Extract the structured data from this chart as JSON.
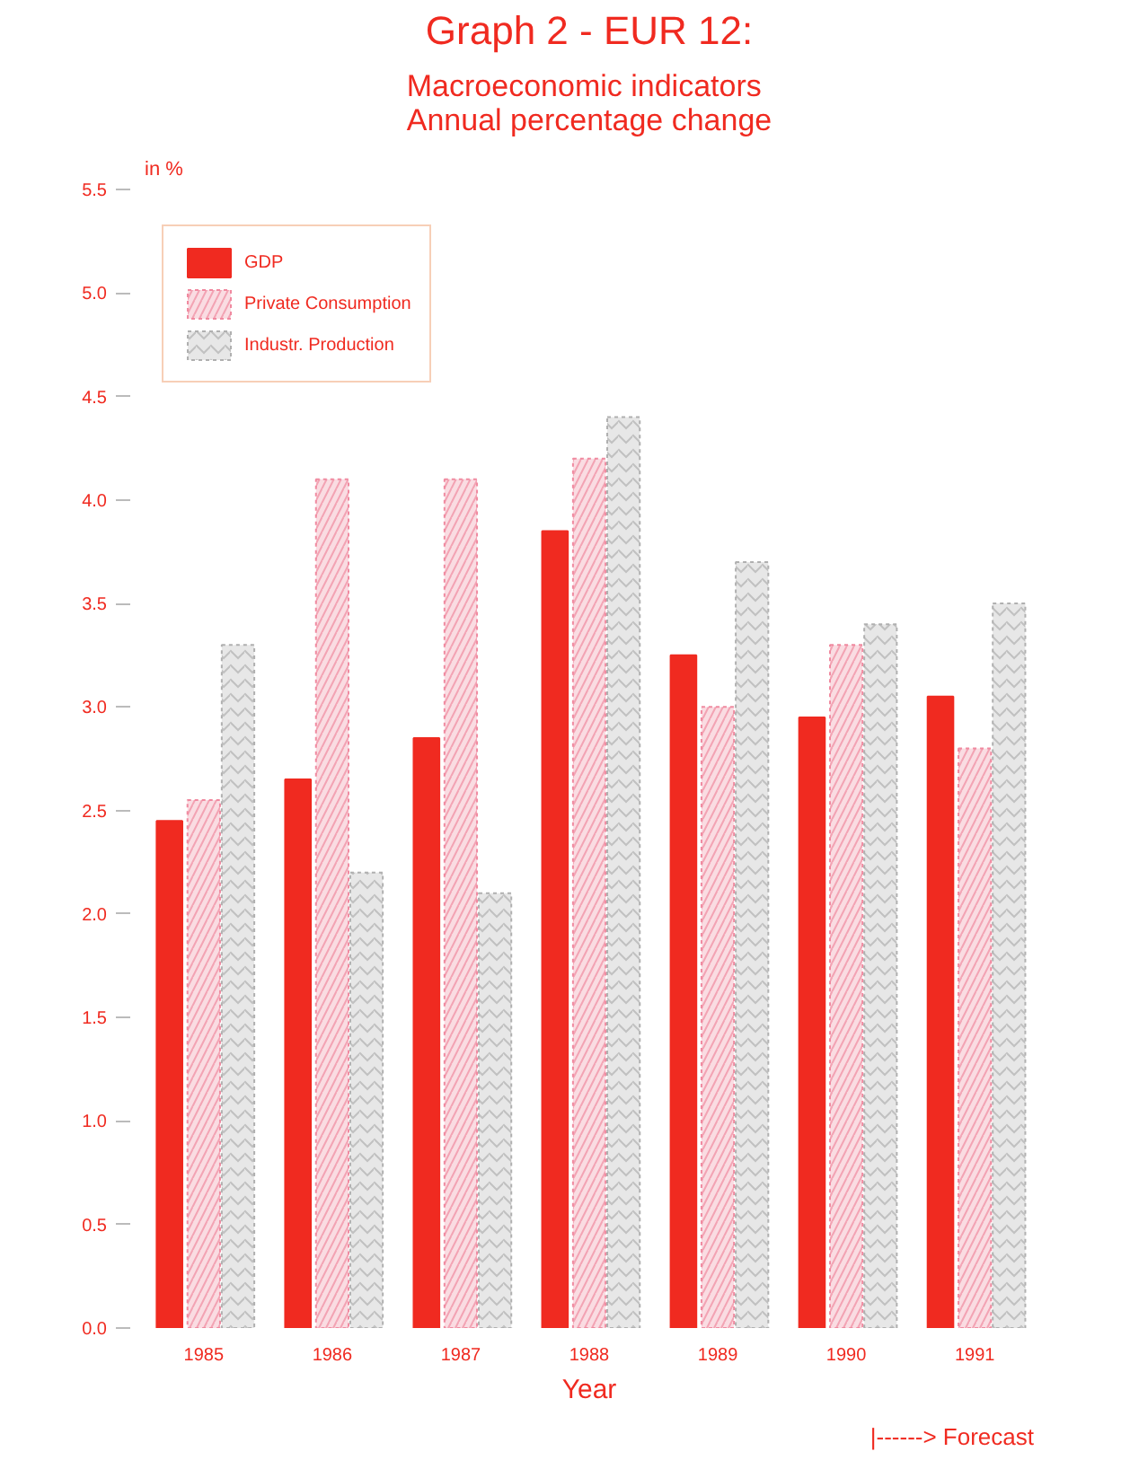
{
  "chart_data": {
    "type": "bar",
    "title": "Graph 2 - EUR 12:",
    "subtitle": "Macroeconomic indicators\nAnnual percentage change",
    "xlabel": "Year",
    "ylabel": "in %",
    "categories": [
      "1985",
      "1986",
      "1987",
      "1988",
      "1989",
      "1990",
      "1991"
    ],
    "series": [
      {
        "name": "GDP",
        "color": "#f02a20",
        "values": [
          2.45,
          2.65,
          2.85,
          3.85,
          3.25,
          2.95,
          3.05
        ]
      },
      {
        "name": "Private Consumption",
        "color": "#f08aa0",
        "values": [
          2.55,
          4.1,
          4.1,
          4.2,
          3.0,
          3.3,
          2.8
        ]
      },
      {
        "name": "Industr. Production",
        "color": "#b0b0b0",
        "values": [
          3.3,
          2.2,
          2.1,
          4.4,
          3.7,
          3.4,
          3.5
        ]
      }
    ],
    "ylim": [
      0,
      5.5
    ],
    "yticks": [
      {
        "value": 0,
        "label": "0.0"
      },
      0.5,
      {
        "value": 1,
        "label": "1.0"
      },
      1.5,
      {
        "value": 2,
        "label": "2.0"
      },
      2.5,
      {
        "value": 3,
        "label": "3.0"
      },
      3.5,
      {
        "value": 4,
        "label": "4.0"
      },
      4.5,
      {
        "value": 5,
        "label": "5.0"
      },
      5.5
    ],
    "legend": "top left",
    "grid": false,
    "annotations": [
      "|------> Forecast"
    ]
  }
}
